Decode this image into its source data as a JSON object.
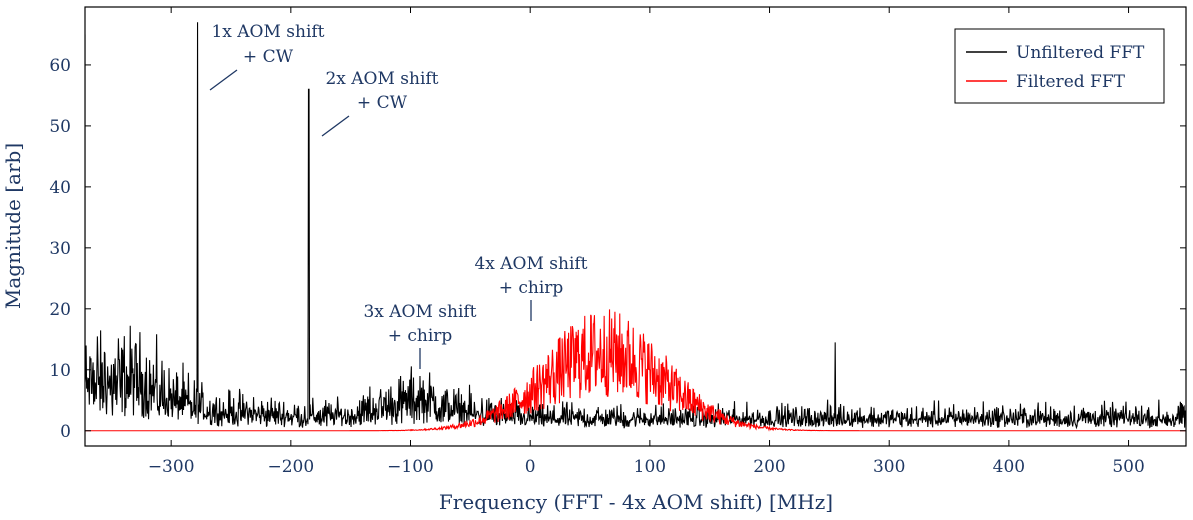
{
  "chart_data": {
    "type": "line",
    "title": "",
    "xlabel": "Frequency (FFT - 4x AOM shift) [MHz]",
    "ylabel": "Magnitude [arb]",
    "xlim": [
      -372,
      548
    ],
    "ylim": [
      -2.5,
      69.5
    ],
    "xticks": [
      -300,
      -200,
      -100,
      0,
      100,
      200,
      300,
      400,
      500
    ],
    "yticks": [
      0,
      10,
      20,
      30,
      40,
      50,
      60
    ],
    "grid": false,
    "legend_position": "top-right",
    "series": [
      {
        "name": "Unfiltered FFT",
        "color": "#000000",
        "baseline": [
          [
            -372,
            9.5
          ],
          [
            -330,
            9.5
          ],
          [
            -300,
            6.5
          ],
          [
            -270,
            4
          ],
          [
            -200,
            3
          ],
          [
            -150,
            3
          ],
          [
            -120,
            5
          ],
          [
            -90,
            6
          ],
          [
            -60,
            4
          ],
          [
            -40,
            3.5
          ],
          [
            0,
            2.5
          ],
          [
            300,
            2.5
          ],
          [
            548,
            2.6
          ]
        ],
        "peaks": [
          {
            "x": -278,
            "y": 67,
            "label": "1x AOM shift + CW"
          },
          {
            "x": -185,
            "y": 56,
            "label": "2x AOM shift + CW"
          },
          {
            "x": 255,
            "y": 14.5,
            "label": ""
          }
        ]
      },
      {
        "name": "Filtered FFT",
        "color": "#ff0000",
        "envelope": "gaussian",
        "center": 62,
        "sigma": 52,
        "amplitude": 15.5,
        "range": [
          -372,
          548
        ]
      }
    ],
    "annotations": [
      {
        "line1": "1x AOM shift",
        "line2": "+ CW",
        "x": -278,
        "y": 66
      },
      {
        "line1": "2x AOM shift",
        "line2": "+ CW",
        "x": -185,
        "y": 55
      },
      {
        "line1": "3x AOM shift",
        "line2": "+ chirp",
        "x": -93,
        "y": 10
      },
      {
        "line1": "4x AOM shift",
        "line2": "+ chirp",
        "x": 0,
        "y": 18
      }
    ]
  }
}
